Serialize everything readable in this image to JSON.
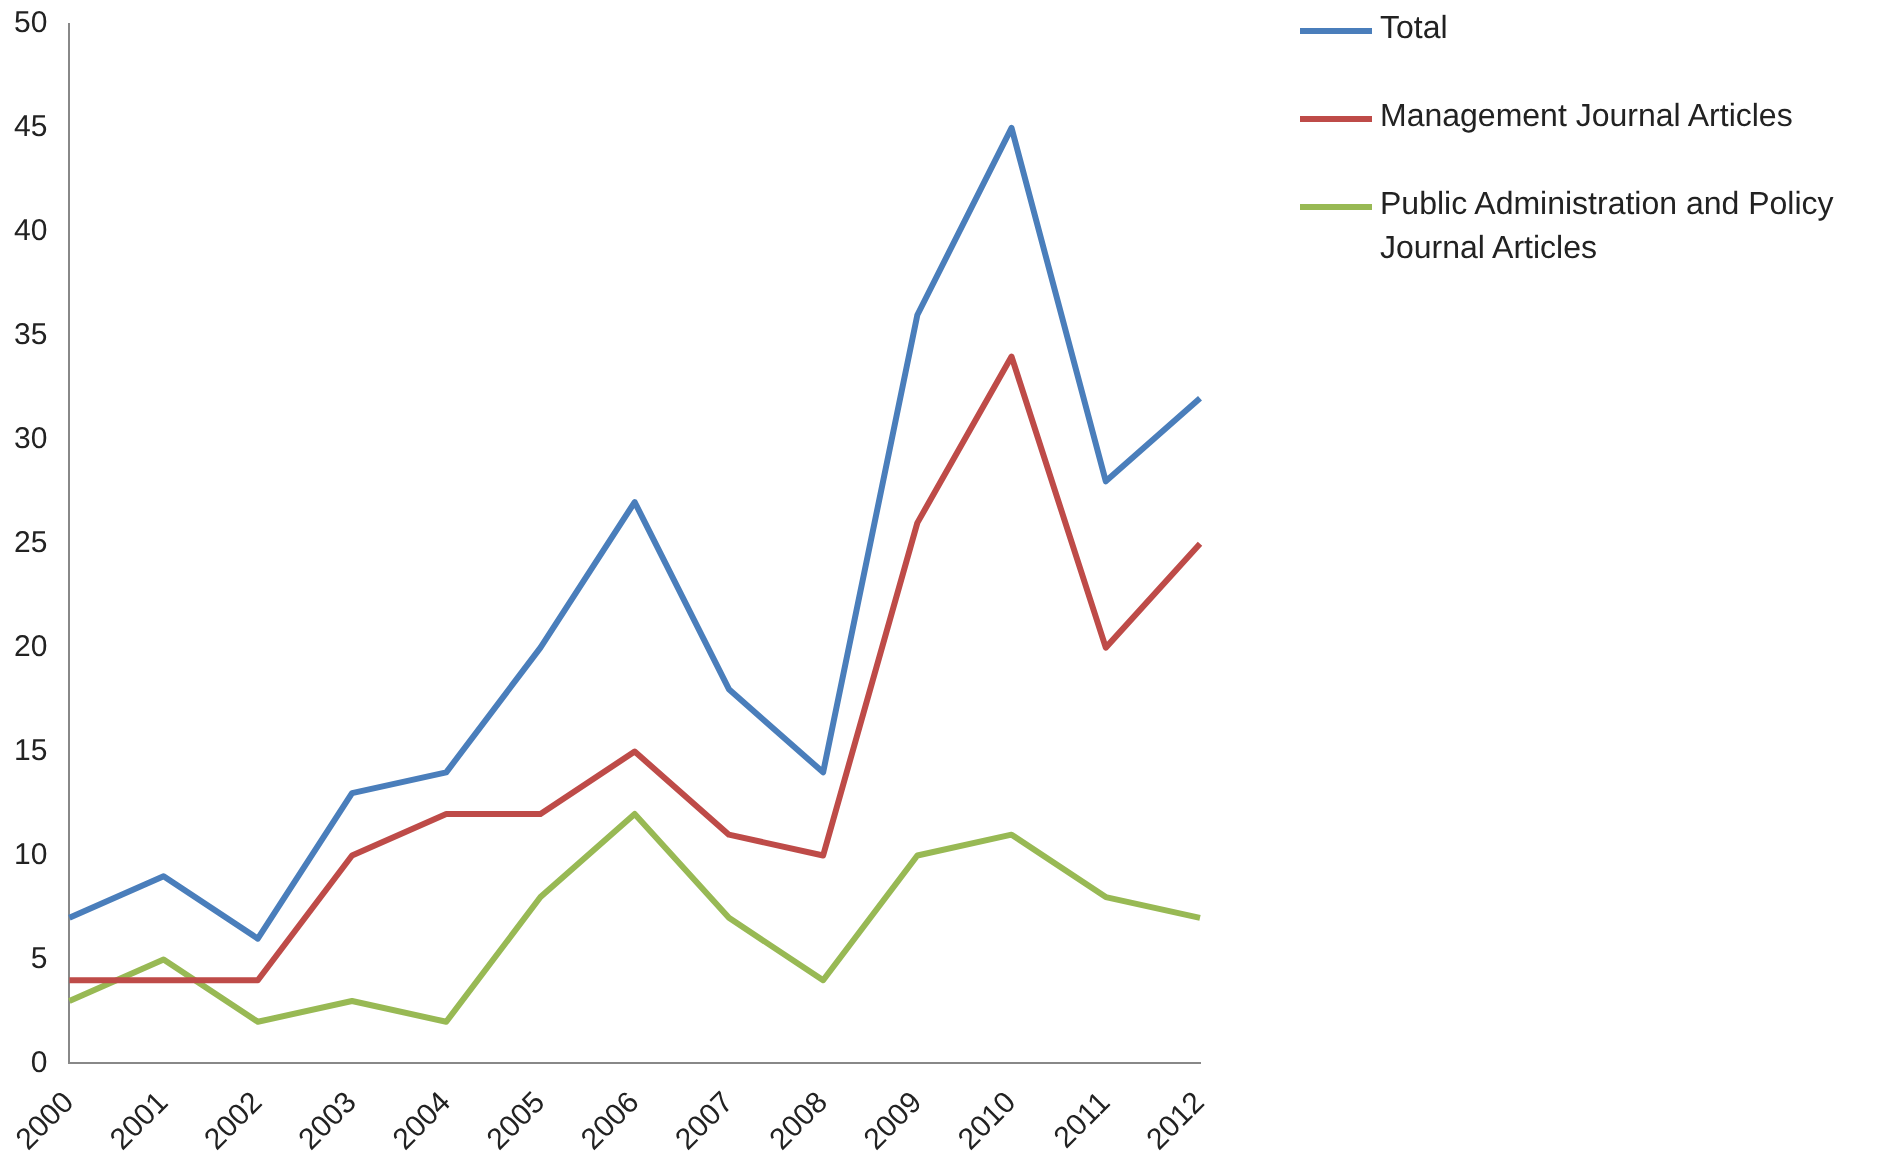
{
  "chart_data": {
    "type": "line",
    "categories": [
      "2000",
      "2001",
      "2002",
      "2003",
      "2004",
      "2005",
      "2006",
      "2007",
      "2008",
      "2009",
      "2010",
      "2011",
      "2012"
    ],
    "series": [
      {
        "name": "Total",
        "color": "#4a7ebb",
        "values": [
          7,
          9,
          6,
          13,
          14,
          20,
          27,
          18,
          14,
          36,
          45,
          28,
          32
        ]
      },
      {
        "name": "Management Journal Articles",
        "color": "#be4b48",
        "values": [
          4,
          4,
          4,
          10,
          12,
          12,
          15,
          11,
          10,
          26,
          34,
          20,
          25
        ]
      },
      {
        "name": "Public Administration and Policy Journal Articles",
        "color": "#98b954",
        "values": [
          3,
          5,
          2,
          3,
          2,
          8,
          12,
          7,
          4,
          10,
          11,
          8,
          7
        ]
      }
    ],
    "ylim": [
      0,
      50
    ],
    "yticks": [
      0,
      5,
      10,
      15,
      20,
      25,
      30,
      35,
      40,
      45,
      50
    ],
    "grid": false,
    "legend": "top right",
    "marker": "none",
    "line_style": "solid"
  }
}
